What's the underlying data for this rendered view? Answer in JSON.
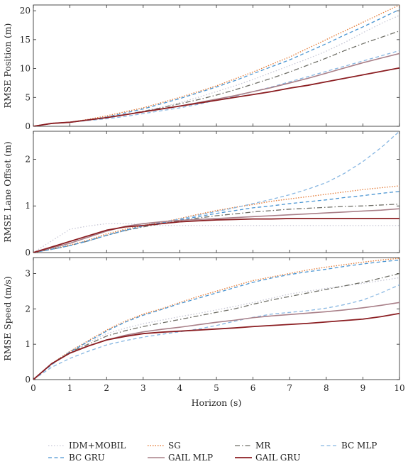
{
  "chart_data": [
    {
      "type": "line",
      "ylabel": "RMSE Position (m)",
      "xlim": [
        0,
        10
      ],
      "ylim": [
        0,
        21
      ],
      "yticks": [
        0,
        5,
        10,
        15,
        20
      ],
      "x": [
        0,
        0.5,
        1,
        1.5,
        2,
        2.5,
        3,
        3.5,
        4,
        4.5,
        5,
        5.5,
        6,
        6.5,
        7,
        7.5,
        8,
        8.5,
        9,
        9.5,
        10
      ],
      "series": [
        {
          "name": "IDM+MOBIL",
          "values": [
            0,
            0.55,
            0.7,
            1.1,
            1.5,
            2.0,
            2.6,
            3.3,
            4.1,
            5.0,
            6.0,
            7.0,
            8.1,
            9.3,
            10.5,
            11.7,
            13.0,
            14.5,
            16.2,
            17.8,
            19.2
          ]
        },
        {
          "name": "SG",
          "values": [
            0,
            0.5,
            0.7,
            1.2,
            1.8,
            2.5,
            3.2,
            4.1,
            5.0,
            6.0,
            7.0,
            8.2,
            9.4,
            10.7,
            12.0,
            13.5,
            15.0,
            16.5,
            18.0,
            19.5,
            21.0
          ]
        },
        {
          "name": "MR",
          "values": [
            0,
            0.5,
            0.7,
            1.1,
            1.5,
            2.0,
            2.6,
            3.2,
            3.9,
            4.6,
            5.4,
            6.3,
            7.3,
            8.3,
            9.4,
            10.6,
            11.8,
            13.1,
            14.3,
            15.4,
            16.5
          ]
        },
        {
          "name": "BC MLP",
          "values": [
            0,
            0.5,
            0.7,
            1.0,
            1.3,
            1.7,
            2.2,
            2.7,
            3.2,
            3.8,
            4.5,
            5.2,
            6.0,
            6.8,
            7.7,
            8.6,
            9.5,
            10.4,
            11.3,
            12.2,
            13.1
          ]
        },
        {
          "name": "BC GRU",
          "values": [
            0,
            0.5,
            0.7,
            1.1,
            1.6,
            2.3,
            3.0,
            3.9,
            4.8,
            5.8,
            6.8,
            7.9,
            9.1,
            10.3,
            11.5,
            12.9,
            14.3,
            15.8,
            17.2,
            18.7,
            20.2
          ]
        },
        {
          "name": "GAIL MLP",
          "values": [
            0,
            0.5,
            0.7,
            1.1,
            1.5,
            2.0,
            2.5,
            3.0,
            3.5,
            4.1,
            4.7,
            5.3,
            6.0,
            6.7,
            7.5,
            8.3,
            9.2,
            10.1,
            11.0,
            11.8,
            12.6
          ]
        },
        {
          "name": "GAIL GRU",
          "values": [
            0,
            0.5,
            0.7,
            1.1,
            1.5,
            2.0,
            2.5,
            3.0,
            3.5,
            4.0,
            4.5,
            5.0,
            5.5,
            6.0,
            6.6,
            7.1,
            7.7,
            8.3,
            8.9,
            9.5,
            10.1
          ]
        }
      ]
    },
    {
      "type": "line",
      "ylabel": "RMSE Lane Offset (m)",
      "xlim": [
        0,
        10
      ],
      "ylim": [
        0,
        2.6
      ],
      "yticks": [
        0,
        1,
        2
      ],
      "x": [
        0,
        0.5,
        1,
        1.5,
        2,
        2.5,
        3,
        3.5,
        4,
        4.5,
        5,
        5.5,
        6,
        6.5,
        7,
        7.5,
        8,
        8.5,
        9,
        9.5,
        10
      ],
      "series": [
        {
          "name": "IDM+MOBIL",
          "values": [
            0,
            0.25,
            0.5,
            0.57,
            0.62,
            0.62,
            0.6,
            0.58,
            0.58,
            0.58,
            0.58,
            0.58,
            0.58,
            0.58,
            0.58,
            0.58,
            0.58,
            0.58,
            0.58,
            0.58,
            0.58
          ]
        },
        {
          "name": "SG",
          "values": [
            0,
            0.08,
            0.16,
            0.27,
            0.4,
            0.5,
            0.58,
            0.65,
            0.73,
            0.82,
            0.9,
            0.97,
            1.03,
            1.1,
            1.15,
            1.2,
            1.25,
            1.3,
            1.35,
            1.39,
            1.43
          ]
        },
        {
          "name": "MR",
          "values": [
            0,
            0.07,
            0.15,
            0.25,
            0.37,
            0.47,
            0.55,
            0.62,
            0.68,
            0.74,
            0.79,
            0.83,
            0.87,
            0.9,
            0.93,
            0.95,
            0.97,
            0.99,
            1.0,
            1.02,
            1.04
          ]
        },
        {
          "name": "BC MLP",
          "values": [
            0,
            0.07,
            0.15,
            0.26,
            0.37,
            0.47,
            0.57,
            0.65,
            0.72,
            0.8,
            0.88,
            0.96,
            1.05,
            1.14,
            1.24,
            1.36,
            1.5,
            1.7,
            1.95,
            2.25,
            2.6
          ]
        },
        {
          "name": "BC GRU",
          "values": [
            0,
            0.07,
            0.15,
            0.25,
            0.37,
            0.48,
            0.57,
            0.64,
            0.7,
            0.77,
            0.84,
            0.9,
            0.96,
            1.0,
            1.05,
            1.09,
            1.13,
            1.18,
            1.22,
            1.27,
            1.31
          ]
        },
        {
          "name": "GAIL MLP",
          "values": [
            0,
            0.1,
            0.2,
            0.33,
            0.46,
            0.56,
            0.62,
            0.66,
            0.69,
            0.71,
            0.73,
            0.75,
            0.77,
            0.79,
            0.81,
            0.83,
            0.85,
            0.87,
            0.89,
            0.91,
            0.94
          ]
        },
        {
          "name": "GAIL GRU",
          "values": [
            0,
            0.12,
            0.24,
            0.36,
            0.48,
            0.55,
            0.58,
            0.62,
            0.66,
            0.68,
            0.7,
            0.71,
            0.72,
            0.72,
            0.73,
            0.73,
            0.73,
            0.73,
            0.73,
            0.73,
            0.73
          ]
        }
      ]
    },
    {
      "type": "line",
      "ylabel": "RMSE Speed (m/s)",
      "xlabel": "Horizon (s)",
      "xlim": [
        0,
        10
      ],
      "ylim": [
        0,
        3.45
      ],
      "yticks": [
        0,
        1,
        2,
        3
      ],
      "xticks": [
        0,
        1,
        2,
        3,
        4,
        5,
        6,
        7,
        8,
        9,
        10
      ],
      "x": [
        0,
        0.5,
        1,
        1.5,
        2,
        2.5,
        3,
        3.5,
        4,
        4.5,
        5,
        5.5,
        6,
        6.5,
        7,
        7.5,
        8,
        8.5,
        9,
        9.5,
        10
      ],
      "series": [
        {
          "name": "IDM+MOBIL",
          "values": [
            0,
            0.45,
            0.8,
            1.05,
            1.3,
            1.45,
            1.58,
            1.68,
            1.78,
            1.87,
            1.97,
            2.07,
            2.18,
            2.3,
            2.42,
            2.5,
            2.58,
            2.65,
            2.72,
            2.8,
            2.88
          ]
        },
        {
          "name": "SG",
          "values": [
            0,
            0.45,
            0.8,
            1.1,
            1.4,
            1.65,
            1.85,
            2.0,
            2.18,
            2.35,
            2.5,
            2.65,
            2.8,
            2.9,
            3.0,
            3.1,
            3.18,
            3.25,
            3.32,
            3.38,
            3.43
          ]
        },
        {
          "name": "MR",
          "values": [
            0,
            0.45,
            0.78,
            1.0,
            1.23,
            1.38,
            1.5,
            1.6,
            1.7,
            1.8,
            1.9,
            2.0,
            2.13,
            2.25,
            2.35,
            2.45,
            2.55,
            2.65,
            2.75,
            2.87,
            3.0
          ]
        },
        {
          "name": "BC MLP",
          "values": [
            0,
            0.35,
            0.6,
            0.8,
            0.98,
            1.1,
            1.2,
            1.28,
            1.35,
            1.43,
            1.53,
            1.65,
            1.76,
            1.85,
            1.9,
            1.95,
            2.02,
            2.12,
            2.25,
            2.45,
            2.68
          ]
        },
        {
          "name": "BC GRU",
          "values": [
            0,
            0.42,
            0.78,
            1.08,
            1.37,
            1.62,
            1.82,
            1.98,
            2.15,
            2.3,
            2.45,
            2.6,
            2.75,
            2.87,
            2.97,
            3.05,
            3.12,
            3.2,
            3.27,
            3.33,
            3.38
          ]
        },
        {
          "name": "GAIL MLP",
          "values": [
            0,
            0.45,
            0.75,
            0.95,
            1.12,
            1.25,
            1.35,
            1.42,
            1.48,
            1.55,
            1.62,
            1.68,
            1.75,
            1.8,
            1.84,
            1.88,
            1.92,
            1.97,
            2.03,
            2.1,
            2.18
          ]
        },
        {
          "name": "GAIL GRU",
          "values": [
            0,
            0.45,
            0.75,
            0.95,
            1.12,
            1.22,
            1.3,
            1.34,
            1.37,
            1.4,
            1.43,
            1.46,
            1.5,
            1.53,
            1.56,
            1.59,
            1.63,
            1.67,
            1.71,
            1.78,
            1.87
          ]
        }
      ]
    }
  ],
  "legend": {
    "entries": [
      "IDM+MOBIL",
      "SG",
      "MR",
      "BC MLP",
      "BC GRU",
      "GAIL MLP",
      "GAIL GRU"
    ]
  },
  "styles": {
    "IDM+MOBIL": {
      "color": "#c8c8d6",
      "dash": "1.5 2.5",
      "width": 1.3
    },
    "SG": {
      "color": "#e5803e",
      "dash": "1.5 2",
      "width": 1.4
    },
    "MR": {
      "color": "#6e6e66",
      "dash": "7 3 1.5 3",
      "width": 1.3
    },
    "BC MLP": {
      "color": "#88b7e2",
      "dash": "5 3.5",
      "width": 1.3
    },
    "BC GRU": {
      "color": "#4a95d2",
      "dash": "5 3.5",
      "width": 1.3
    },
    "GAIL MLP": {
      "color": "#a98089",
      "dash": "",
      "width": 1.6
    },
    "GAIL GRU": {
      "color": "#8b1e22",
      "dash": "",
      "width": 1.8
    }
  }
}
